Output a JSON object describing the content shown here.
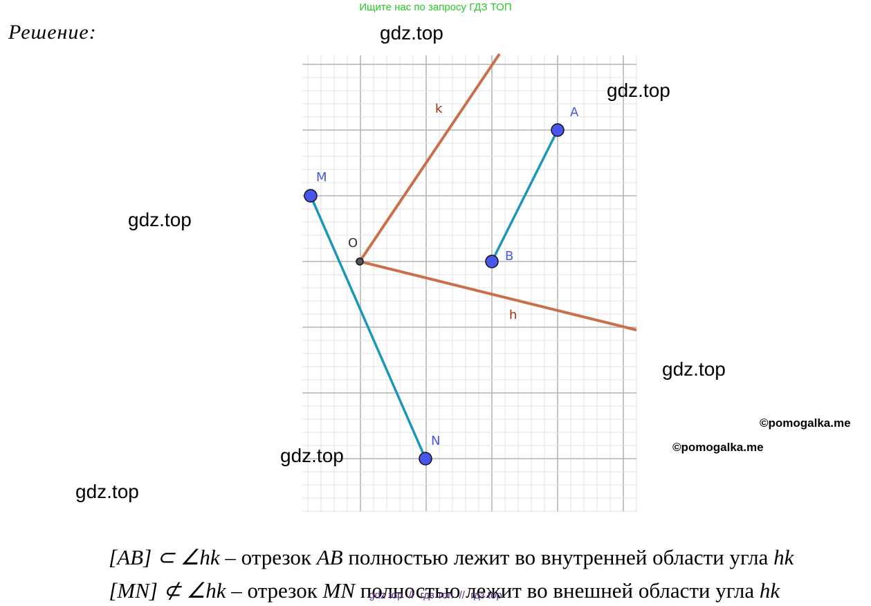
{
  "header": {
    "search_hint": "Ищите нас по запросу ГДЗ ТОП",
    "solution_label": "Решение:"
  },
  "watermarks": [
    "gdz.top",
    "gdz.top",
    "gdz.top",
    "gdz.top",
    "gdz.top",
    "gdz.top"
  ],
  "copyrights": [
    "©pomogalka.me",
    "©pomogalka.me"
  ],
  "diagram": {
    "points": [
      "A",
      "B",
      "M",
      "N",
      "O"
    ],
    "rays": [
      "k",
      "h"
    ]
  },
  "solution": {
    "lines": [
      [
        "[AB] ⊂ ∠hk",
        " – отрезок ",
        "AB",
        " полностью лежит во внутренней области угла ",
        "hk"
      ],
      [
        "[MN] ⊄ ∠hk",
        " – отрезок ",
        "MN",
        " полностью лежит во внешней области угла ",
        "hk"
      ]
    ]
  },
  "footer": "gdz top  //  гдз топ  //  гдз top"
}
